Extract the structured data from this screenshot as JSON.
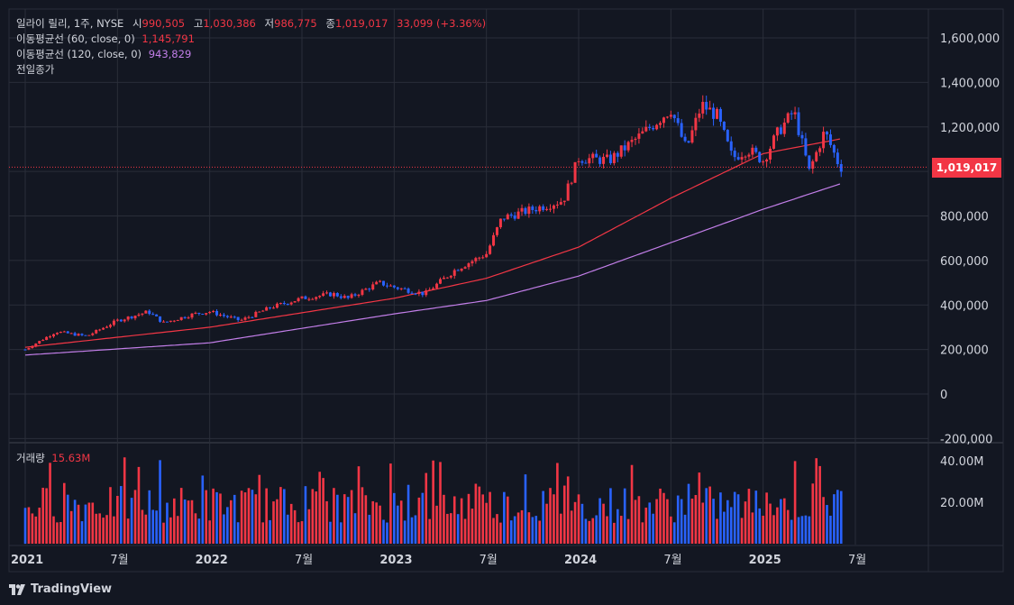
{
  "legend": {
    "name": "일라이 릴리, 1주, NYSE",
    "open_label": "시",
    "open": "990,505",
    "high_label": "고",
    "high": "1,030,386",
    "low_label": "저",
    "low": "986,775",
    "close_label": "종",
    "close": "1,019,017",
    "change": "33,099 (+3.36%)",
    "ma60_label": "이동평균선 (60, close, 0)",
    "ma60_value": "1,145,791",
    "ma120_label": "이동평균선 (120, close, 0)",
    "ma120_value": "943,829",
    "prev_close_label": "전일종가"
  },
  "volume_legend": {
    "label": "거래량",
    "value": "15.63M"
  },
  "last_price_tag": "1,019,017",
  "brand": "TradingView",
  "colors": {
    "background": "#131722",
    "up": "#f23645",
    "down": "#2962ff",
    "ma60": "#f23645",
    "ma120": "#c27ee8",
    "grid": "#2a2e39",
    "text": "#d1d4dc"
  },
  "chart_data": {
    "type": "candlestick",
    "interval": "1W",
    "price_axis": {
      "ticks": [
        1600000,
        1400000,
        1200000,
        1000000,
        800000,
        600000,
        400000,
        200000,
        0,
        -200000
      ],
      "tick_labels": [
        "1,600,000",
        "1,400,000",
        "1,200,000",
        "1,000,000",
        "800,000",
        "600,000",
        "400,000",
        "200,000",
        "0",
        "-200,000"
      ],
      "range": [
        -200000,
        1600000
      ],
      "last_price": 1019017
    },
    "volume_axis": {
      "ticks": [
        40000000,
        20000000
      ],
      "tick_labels": [
        "40.00M",
        "20.00M"
      ]
    },
    "time_axis": {
      "labels": [
        "2021",
        "7월",
        "2022",
        "7월",
        "2023",
        "7월",
        "2024",
        "7월",
        "2025",
        "7월"
      ],
      "label_dates": [
        "2021-01",
        "2021-07",
        "2022-01",
        "2022-07",
        "2023-01",
        "2023-07",
        "2024-01",
        "2024-07",
        "2025-01",
        "2025-07"
      ]
    },
    "close_path": [
      {
        "date": "2021-01",
        "close": 200000
      },
      {
        "date": "2021-03",
        "close": 280000
      },
      {
        "date": "2021-05",
        "close": 260000
      },
      {
        "date": "2021-07",
        "close": 330000
      },
      {
        "date": "2021-09",
        "close": 370000
      },
      {
        "date": "2021-10",
        "close": 320000
      },
      {
        "date": "2021-12",
        "close": 360000
      },
      {
        "date": "2022-01",
        "close": 370000
      },
      {
        "date": "2022-03",
        "close": 330000
      },
      {
        "date": "2022-05",
        "close": 390000
      },
      {
        "date": "2022-07",
        "close": 430000
      },
      {
        "date": "2022-09",
        "close": 450000
      },
      {
        "date": "2022-10",
        "close": 430000
      },
      {
        "date": "2022-12",
        "close": 500000
      },
      {
        "date": "2023-01",
        "close": 480000
      },
      {
        "date": "2023-03",
        "close": 450000
      },
      {
        "date": "2023-05",
        "close": 560000
      },
      {
        "date": "2023-07",
        "close": 630000
      },
      {
        "date": "2023-08",
        "close": 790000
      },
      {
        "date": "2023-10",
        "close": 830000
      },
      {
        "date": "2023-12",
        "close": 870000
      },
      {
        "date": "2024-01",
        "close": 1060000
      },
      {
        "date": "2024-03",
        "close": 1050000
      },
      {
        "date": "2024-05",
        "close": 1160000
      },
      {
        "date": "2024-07",
        "close": 1280000
      },
      {
        "date": "2024-08",
        "close": 1100000
      },
      {
        "date": "2024-09",
        "close": 1300000
      },
      {
        "date": "2024-10",
        "close": 1250000
      },
      {
        "date": "2024-11",
        "close": 1060000
      },
      {
        "date": "2024-12",
        "close": 1100000
      },
      {
        "date": "2025-01",
        "close": 1050000
      },
      {
        "date": "2025-02",
        "close": 1180000
      },
      {
        "date": "2025-03",
        "close": 1270000
      },
      {
        "date": "2025-04",
        "close": 1000000
      },
      {
        "date": "2025-05",
        "close": 1180000
      },
      {
        "date": "2025-06",
        "close": 1019017
      }
    ],
    "ma60_path": [
      {
        "date": "2021-01",
        "value": 210000
      },
      {
        "date": "2022-01",
        "value": 300000
      },
      {
        "date": "2023-01",
        "value": 430000
      },
      {
        "date": "2023-07",
        "value": 520000
      },
      {
        "date": "2024-01",
        "value": 660000
      },
      {
        "date": "2024-07",
        "value": 880000
      },
      {
        "date": "2025-01",
        "value": 1080000
      },
      {
        "date": "2025-06",
        "value": 1145791
      }
    ],
    "ma120_path": [
      {
        "date": "2021-01",
        "value": 175000
      },
      {
        "date": "2022-01",
        "value": 230000
      },
      {
        "date": "2023-01",
        "value": 360000
      },
      {
        "date": "2023-07",
        "value": 420000
      },
      {
        "date": "2024-01",
        "value": 530000
      },
      {
        "date": "2024-07",
        "value": 680000
      },
      {
        "date": "2025-01",
        "value": 830000
      },
      {
        "date": "2025-06",
        "value": 943829
      }
    ],
    "volume_level_millions": 15.63
  }
}
